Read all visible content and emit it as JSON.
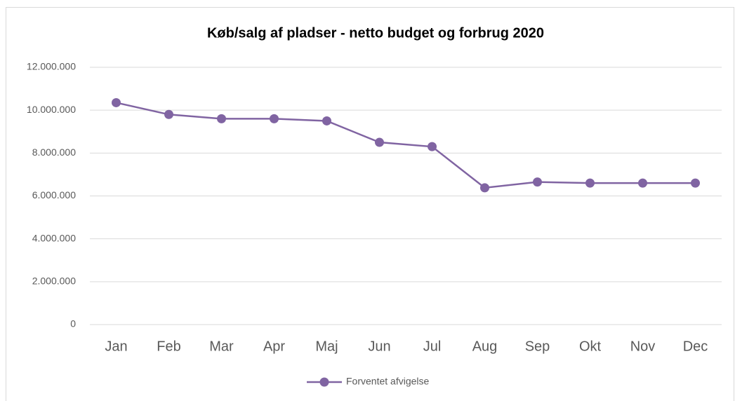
{
  "chart_data": {
    "type": "line",
    "title": "Køb/salg af pladser - netto budget og forbrug 2020",
    "categories": [
      "Jan",
      "Feb",
      "Mar",
      "Apr",
      "Maj",
      "Jun",
      "Jul",
      "Aug",
      "Sep",
      "Okt",
      "Nov",
      "Dec"
    ],
    "series": [
      {
        "name": "Forventet afvigelse",
        "color": "#8064a2",
        "values": [
          10350000,
          9800000,
          9600000,
          9600000,
          9500000,
          8500000,
          8300000,
          6380000,
          6650000,
          6600000,
          6600000,
          6600000
        ]
      }
    ],
    "ylim": [
      0,
      12000000
    ],
    "yticks": [
      0,
      {
        "value": 2000000,
        "label": "2.000.000"
      },
      {
        "value": 4000000,
        "label": "4.000.000"
      },
      {
        "value": 6000000,
        "label": "6.000.000"
      },
      {
        "value": 8000000,
        "label": "8.000.000"
      },
      {
        "value": 10000000,
        "label": "10.000.000"
      },
      {
        "value": 12000000,
        "label": "12.000.000"
      }
    ],
    "grid": true,
    "legend": "bottom"
  }
}
